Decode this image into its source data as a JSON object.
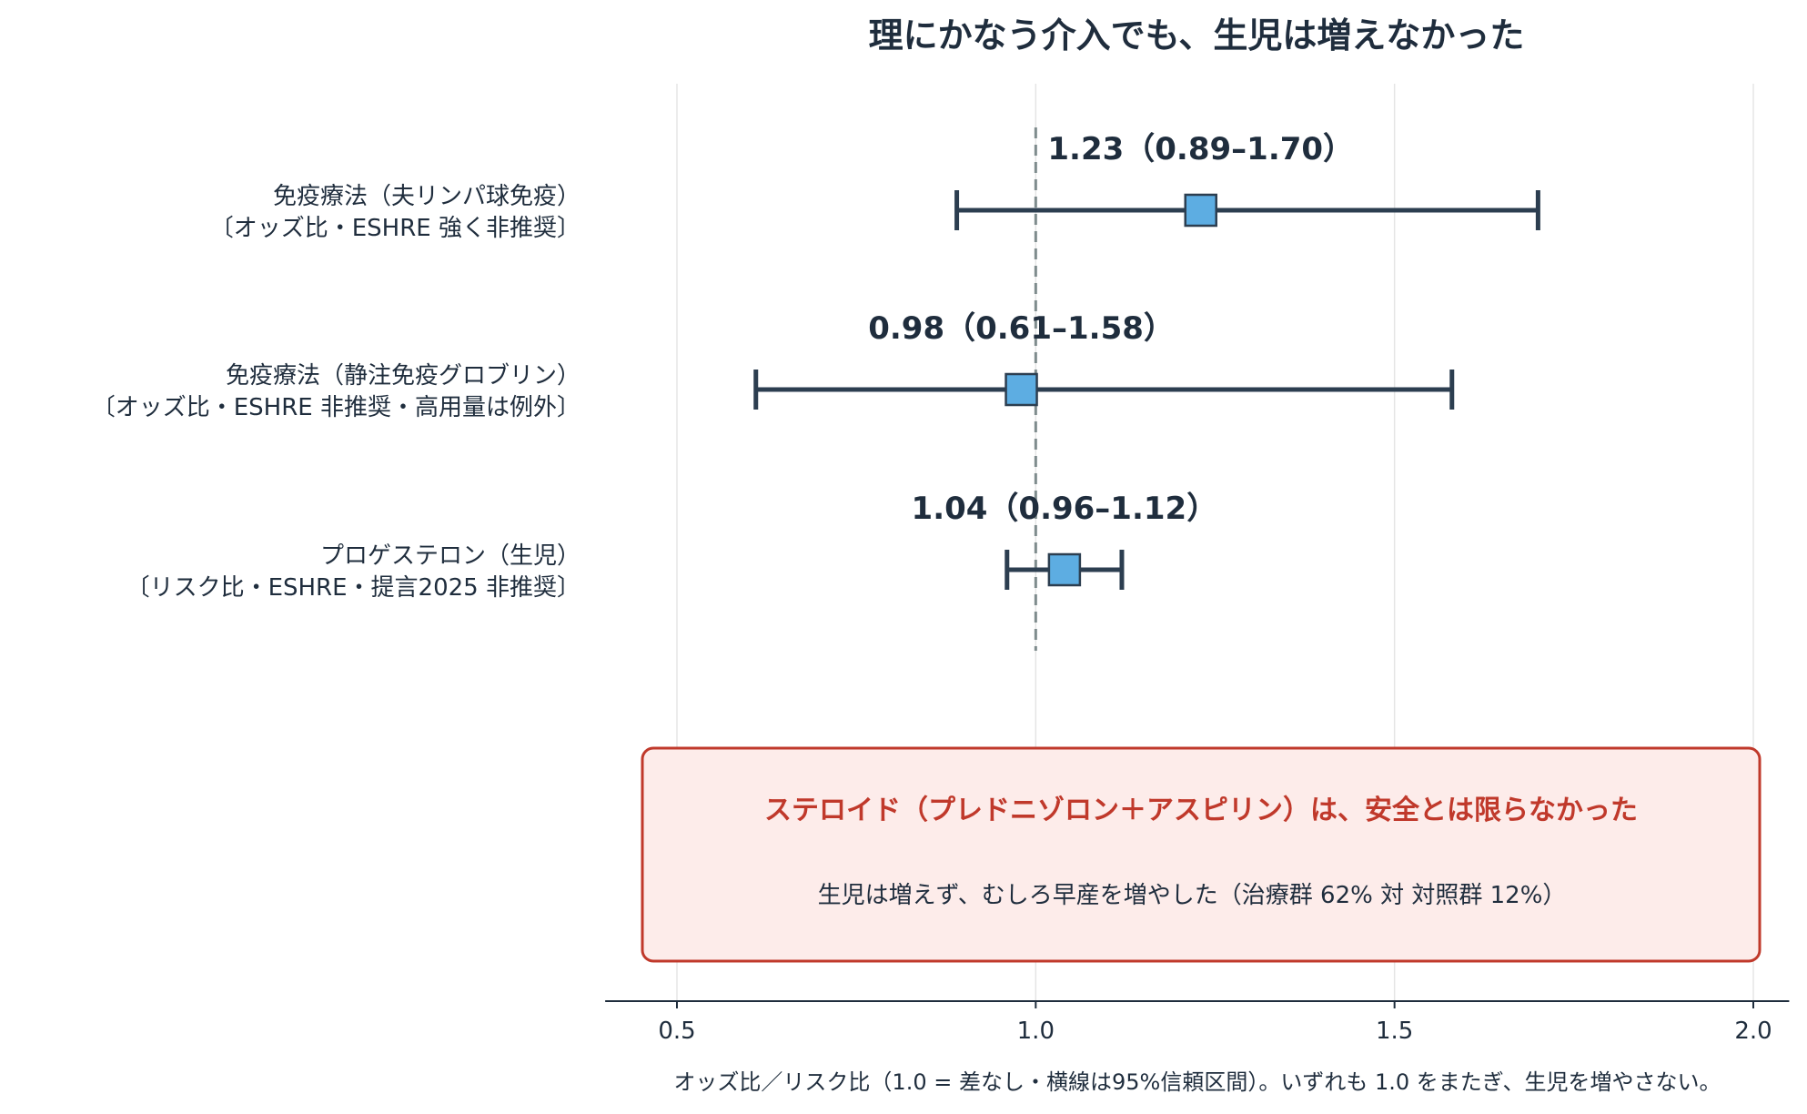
{
  "chart_data": {
    "type": "forest",
    "title": "理にかなう介入でも、生児は増えなかった",
    "xlabel": "オッズ比／リスク比（1.0 = 差なし・横線は95%信頼区間）。いずれも 1.0 をまたぎ、生児を増やさない。",
    "xlim": [
      0.4,
      2.05
    ],
    "xticks": [
      0.5,
      1.0,
      1.5,
      2.0
    ],
    "xtick_labels": [
      "0.5",
      "1.0",
      "1.5",
      "2.0"
    ],
    "reference_line": 1.0,
    "grid": "vertical",
    "rows": [
      {
        "label_line1": "免疫療法（夫リンパ球免疫）",
        "label_line2": "〔オッズ比・ESHRE 強く非推奨〕",
        "estimate": 1.23,
        "lower": 0.89,
        "upper": 1.7,
        "value_text": "1.23（0.89–1.70）"
      },
      {
        "label_line1": "免疫療法（静注免疫グロブリン）",
        "label_line2": "〔オッズ比・ESHRE 非推奨・高用量は例外〕",
        "estimate": 0.98,
        "lower": 0.61,
        "upper": 1.58,
        "value_text": "0.98（0.61–1.58）"
      },
      {
        "label_line1": "プロゲステロン（生児）",
        "label_line2": "〔リスク比・ESHRE・提言2025 非推奨〕",
        "estimate": 1.04,
        "lower": 0.96,
        "upper": 1.12,
        "value_text": "1.04（0.96–1.12）"
      }
    ],
    "callout": {
      "title": "ステロイド（プレドニゾロン＋アスピリン）は、安全とは限らなかった",
      "body": "生児は増えず、むしろ早産を増やした（治療群 62% 対 対照群 12%）"
    },
    "colors": {
      "marker": "#5dade2",
      "line": "#2c3e50",
      "refline": "#7f8c8d",
      "grid": "#e5e5e5",
      "callout_border": "#c0392b",
      "callout_fill": "#fdecea",
      "callout_title": "#c0392b"
    }
  }
}
